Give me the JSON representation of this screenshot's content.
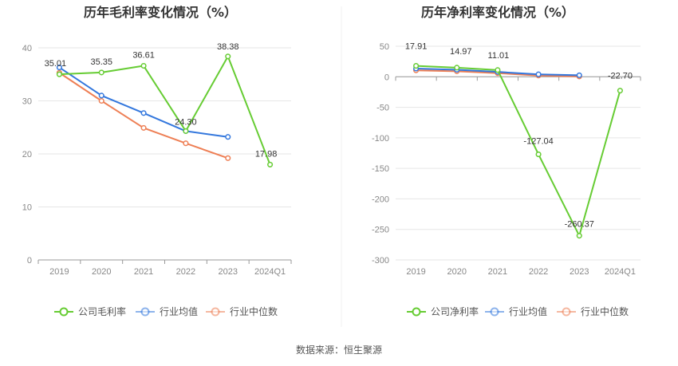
{
  "colors": {
    "company": "#66cc33",
    "avg": "#3377dd",
    "median": "#ee7f55",
    "grid": "#e6e6e6",
    "divider": "#f0f0f0"
  },
  "source_text": "数据来源：恒生聚源",
  "chart_data": [
    {
      "type": "line",
      "title": "历年毛利率变化情况（%）",
      "categories": [
        "2019",
        "2020",
        "2021",
        "2022",
        "2023",
        "2024Q1"
      ],
      "ylim": [
        0,
        40
      ],
      "yticks": [
        "0",
        "10",
        "20",
        "30",
        "40"
      ],
      "grid": true,
      "legend_position": "bottom",
      "series": [
        {
          "name": "公司毛利率",
          "key": "company",
          "values": [
            35.01,
            35.35,
            36.61,
            24.3,
            38.38,
            17.98
          ],
          "labels": [
            "35.01",
            "35.35",
            "36.61",
            "24.30",
            "38.38",
            "17.98"
          ]
        },
        {
          "name": "行业均值",
          "key": "avg",
          "values": [
            36.3,
            31.0,
            27.7,
            24.3,
            23.2,
            null
          ]
        },
        {
          "name": "行业中位数",
          "key": "median",
          "values": [
            35.3,
            30.0,
            24.9,
            22.0,
            19.2,
            null
          ]
        }
      ]
    },
    {
      "type": "line",
      "title": "历年净利率变化情况（%）",
      "categories": [
        "2019",
        "2020",
        "2021",
        "2022",
        "2023",
        "2024Q1"
      ],
      "ylim": [
        -300,
        50
      ],
      "yticks": [
        "50",
        "0",
        "-50",
        "-100",
        "-150",
        "-200",
        "-250",
        "-300"
      ],
      "grid": true,
      "legend_position": "bottom",
      "series": [
        {
          "name": "公司净利率",
          "key": "company",
          "values": [
            17.91,
            14.97,
            11.01,
            -127.04,
            -260.37,
            -22.7
          ],
          "labels": [
            "17.91",
            "14.97",
            "11.01",
            "-127.04",
            "-260.37",
            "-22.70"
          ]
        },
        {
          "name": "行业均值",
          "key": "avg",
          "values": [
            13.5,
            11.5,
            8.0,
            4.0,
            2.5,
            null
          ]
        },
        {
          "name": "行业中位数",
          "key": "median",
          "values": [
            10.5,
            9.0,
            6.0,
            2.0,
            0.5,
            null
          ]
        }
      ]
    }
  ]
}
